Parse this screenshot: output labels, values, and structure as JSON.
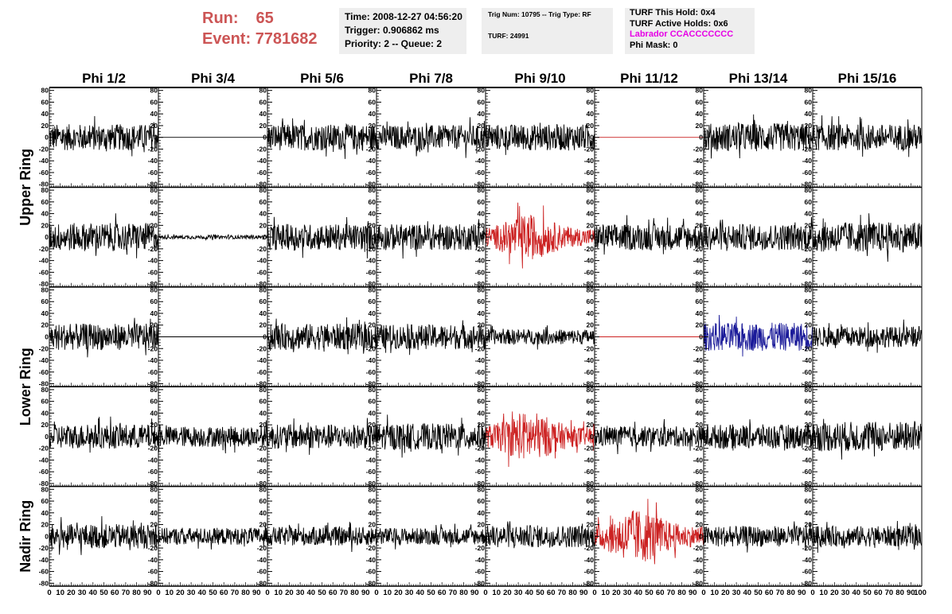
{
  "header": {
    "run_label": "Run:",
    "run_value": "65",
    "event_label": "Event:",
    "event_value": "7781682",
    "time": "Time: 2008-12-27 04:56:20",
    "trigger": "Trigger: 0.906862 ms",
    "priority": "Priority: 2 -- Queue: 2",
    "trig_num": "Trig Num: 10795 -- Trig Type: RF",
    "turf": "TURF: 24991",
    "turf_this_hold": "TURF This Hold: 0x4",
    "turf_active_holds": "TURF Active Holds: 0x6",
    "labrador": "Labrador CCACCCCCCC",
    "phi_mask": "Phi Mask: 0"
  },
  "colors": {
    "title_red": "#cc5555",
    "labrador_magenta": "#e600e6",
    "trace_black": "#000000",
    "trace_red": "#cc2222",
    "trace_blue": "#1a1a99",
    "info_bg": "#eeeeee"
  },
  "chart_data": {
    "type": "line",
    "description_type": "grid of waveform panels",
    "columns": [
      "Phi 1/2",
      "Phi 3/4",
      "Phi 5/6",
      "Phi 7/8",
      "Phi 9/10",
      "Phi 11/12",
      "Phi 13/14",
      "Phi 15/16"
    ],
    "row_groups": [
      {
        "label": "Upper Ring",
        "rows": [
          0,
          1
        ]
      },
      {
        "label": "Lower Ring",
        "rows": [
          2,
          3
        ]
      },
      {
        "label": "Nadir Ring",
        "rows": [
          4
        ]
      }
    ],
    "ylim": [
      -85,
      85
    ],
    "y_ticks": [
      -80,
      -60,
      -40,
      -20,
      0,
      20,
      40,
      60,
      80
    ],
    "xlim": [
      0,
      100
    ],
    "x_ticks": [
      0,
      10,
      20,
      30,
      40,
      50,
      60,
      70,
      80,
      90
    ],
    "x_last_tick": 100,
    "panels": [
      [
        {
          "color": "black",
          "amp": 14,
          "shape": "noise"
        },
        {
          "color": "black",
          "amp": 0,
          "shape": "flat"
        },
        {
          "color": "black",
          "amp": 14,
          "shape": "noise"
        },
        {
          "color": "black",
          "amp": 13,
          "shape": "noise"
        },
        {
          "color": "black",
          "amp": 14,
          "shape": "noise"
        },
        {
          "color": "red",
          "amp": 0,
          "shape": "flat"
        },
        {
          "color": "black",
          "amp": 15,
          "shape": "noise"
        },
        {
          "color": "black",
          "amp": 14,
          "shape": "noise"
        }
      ],
      [
        {
          "color": "black",
          "amp": 15,
          "shape": "noise"
        },
        {
          "color": "black",
          "amp": 2,
          "shape": "noise"
        },
        {
          "color": "black",
          "amp": 14,
          "shape": "noise"
        },
        {
          "color": "black",
          "amp": 14,
          "shape": "noise"
        },
        {
          "color": "red",
          "amp": 20,
          "shape": "burst"
        },
        {
          "color": "black",
          "amp": 14,
          "shape": "noise"
        },
        {
          "color": "black",
          "amp": 14,
          "shape": "noise"
        },
        {
          "color": "black",
          "amp": 16,
          "shape": "noise"
        }
      ],
      [
        {
          "color": "black",
          "amp": 14,
          "shape": "noise"
        },
        {
          "color": "black",
          "amp": 0,
          "shape": "flat"
        },
        {
          "color": "black",
          "amp": 14,
          "shape": "noise"
        },
        {
          "color": "black",
          "amp": 13,
          "shape": "noise"
        },
        {
          "color": "black",
          "amp": 8,
          "shape": "noise"
        },
        {
          "color": "red",
          "amp": 0,
          "shape": "flat"
        },
        {
          "color": "blue",
          "amp": 15,
          "shape": "noise"
        },
        {
          "color": "black",
          "amp": 11,
          "shape": "noise"
        }
      ],
      [
        {
          "color": "black",
          "amp": 13,
          "shape": "noise"
        },
        {
          "color": "black",
          "amp": 11,
          "shape": "noise"
        },
        {
          "color": "black",
          "amp": 13,
          "shape": "noise"
        },
        {
          "color": "black",
          "amp": 14,
          "shape": "noise"
        },
        {
          "color": "red",
          "amp": 22,
          "shape": "burst"
        },
        {
          "color": "black",
          "amp": 11,
          "shape": "noise"
        },
        {
          "color": "black",
          "amp": 13,
          "shape": "noise"
        },
        {
          "color": "black",
          "amp": 16,
          "shape": "noise"
        }
      ],
      [
        {
          "color": "black",
          "amp": 13,
          "shape": "noise"
        },
        {
          "color": "black",
          "amp": 9,
          "shape": "noise"
        },
        {
          "color": "black",
          "amp": 10,
          "shape": "noise"
        },
        {
          "color": "black",
          "amp": 9,
          "shape": "noise"
        },
        {
          "color": "black",
          "amp": 12,
          "shape": "noise"
        },
        {
          "color": "red",
          "amp": 24,
          "shape": "burst"
        },
        {
          "color": "black",
          "amp": 11,
          "shape": "noise"
        },
        {
          "color": "black",
          "amp": 11,
          "shape": "noise"
        }
      ]
    ]
  }
}
